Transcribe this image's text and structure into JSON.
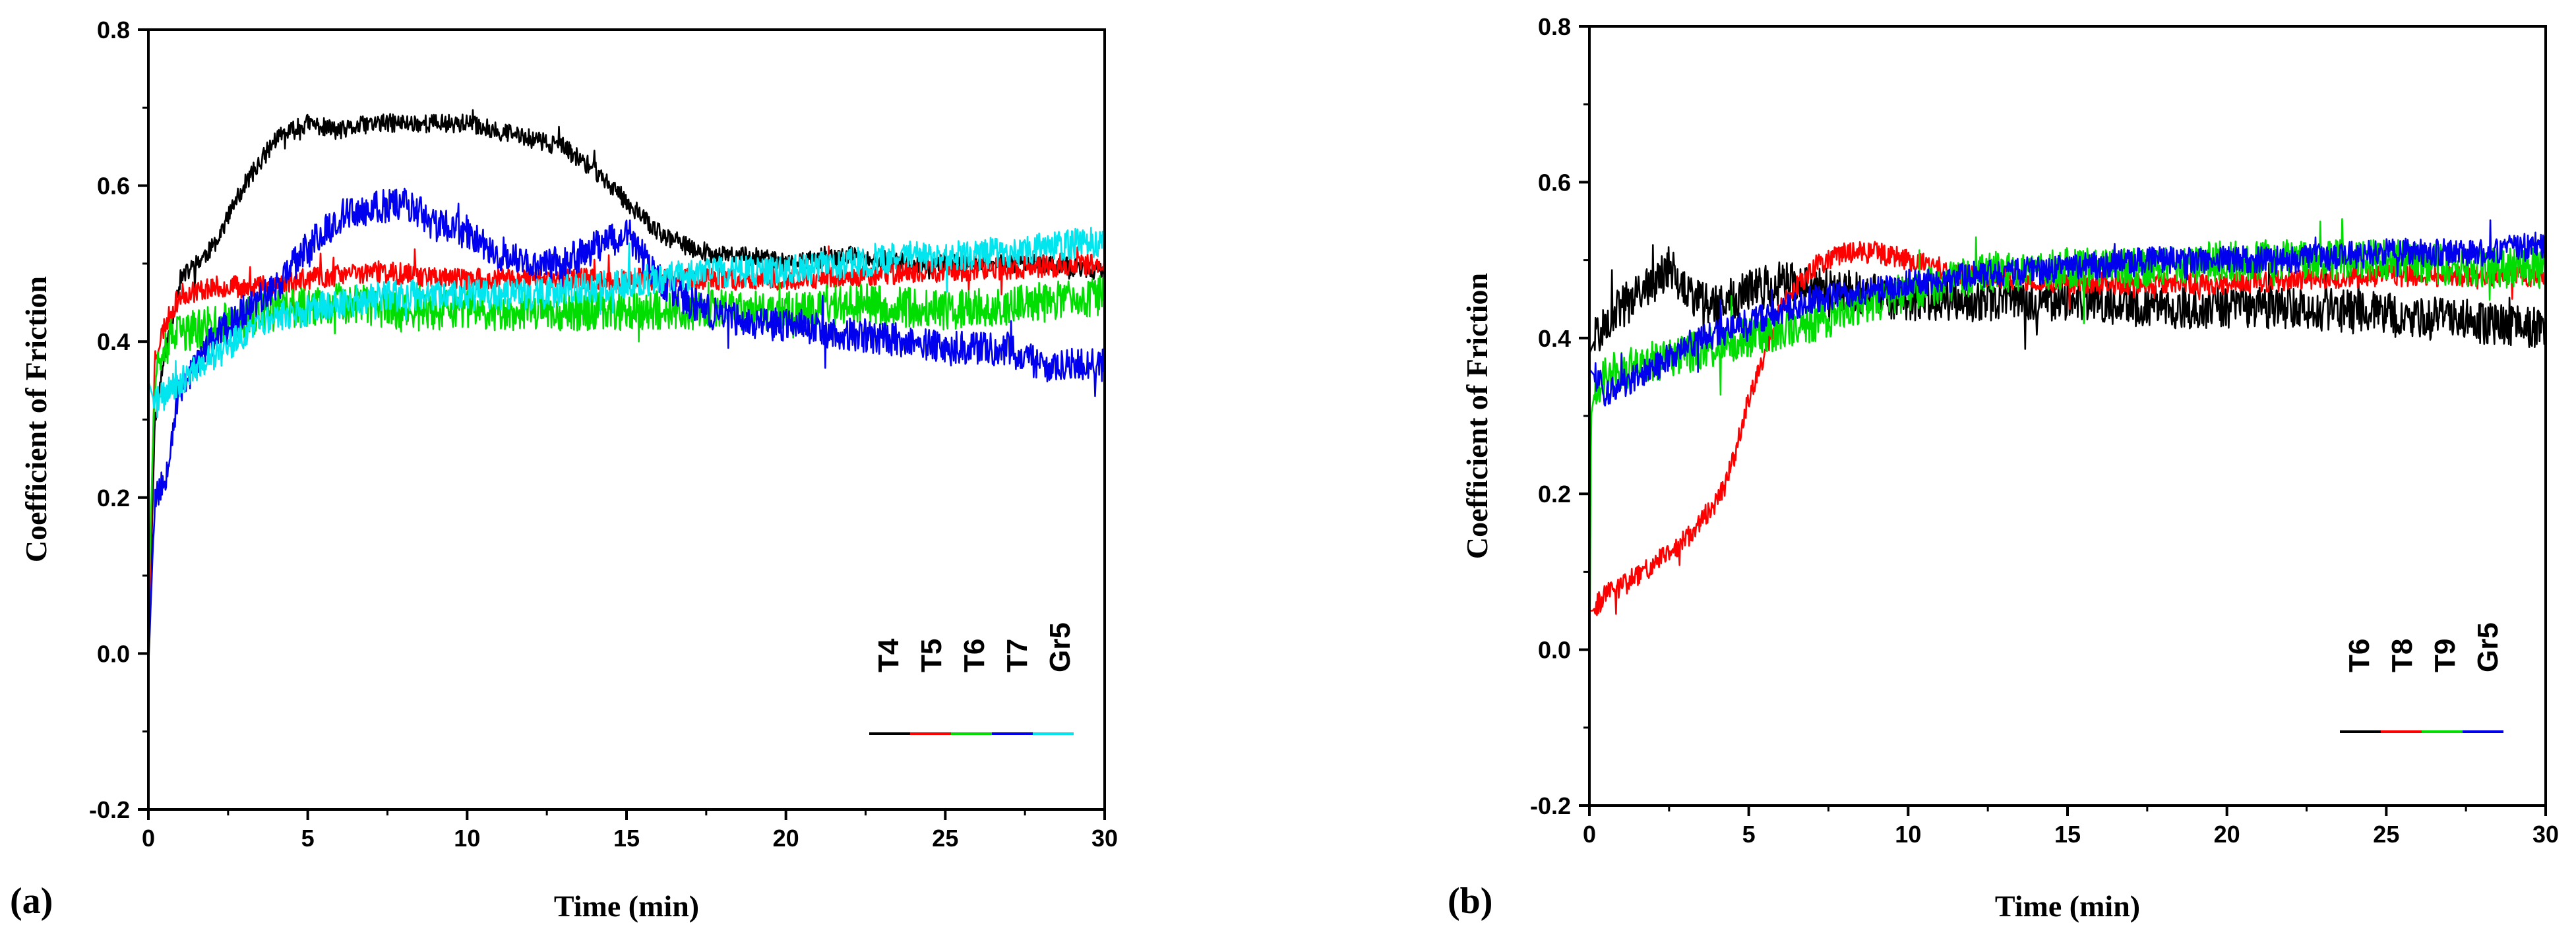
{
  "chart_data": [
    {
      "type": "line",
      "panel_label": "(a)",
      "xlabel": "Time (min)",
      "ylabel": "Coefficient of Friction",
      "xlim": [
        0,
        30
      ],
      "ylim": [
        -0.2,
        0.8
      ],
      "xticks": [
        0,
        5,
        10,
        15,
        20,
        25,
        30
      ],
      "xtick_labels": [
        "0",
        "5",
        "10",
        "15",
        "20",
        "25",
        "30"
      ],
      "yticks": [
        -0.2,
        0.0,
        0.2,
        0.4,
        0.6,
        0.8
      ],
      "ytick_labels": [
        "-0.2",
        "0.0",
        "0.2",
        "0.4",
        "0.6",
        "0.8"
      ],
      "grid": false,
      "legend_position": "bottom-right",
      "series": [
        {
          "name": "T4",
          "color": "#000000",
          "noise": 0.012,
          "seed": 11,
          "x": [
            0,
            0.2,
            0.5,
            1,
            1.5,
            2,
            3,
            4,
            5,
            6,
            7,
            8,
            9,
            10,
            11,
            12,
            13,
            14,
            15,
            16,
            17,
            18,
            19,
            20,
            22,
            24,
            26,
            28,
            30
          ],
          "y": [
            -0.02,
            0.3,
            0.38,
            0.48,
            0.5,
            0.52,
            0.6,
            0.66,
            0.68,
            0.67,
            0.68,
            0.68,
            0.68,
            0.68,
            0.67,
            0.66,
            0.65,
            0.62,
            0.58,
            0.54,
            0.52,
            0.51,
            0.51,
            0.5,
            0.51,
            0.5,
            0.5,
            0.5,
            0.49
          ]
        },
        {
          "name": "T5",
          "color": "#ff0000",
          "noise": 0.014,
          "seed": 23,
          "x": [
            0,
            0.2,
            0.5,
            1,
            2,
            3,
            5,
            7,
            10,
            15,
            20,
            25,
            30
          ],
          "y": [
            0.0,
            0.38,
            0.42,
            0.46,
            0.47,
            0.47,
            0.48,
            0.49,
            0.48,
            0.48,
            0.48,
            0.49,
            0.5
          ]
        },
        {
          "name": "T6",
          "color": "#00dd00",
          "noise": 0.026,
          "seed": 37,
          "x": [
            0,
            0.2,
            0.5,
            1,
            2,
            4,
            6,
            8,
            10,
            12,
            15,
            18,
            20,
            22,
            25,
            28,
            30
          ],
          "y": [
            0.05,
            0.36,
            0.4,
            0.41,
            0.42,
            0.44,
            0.45,
            0.44,
            0.44,
            0.44,
            0.44,
            0.44,
            0.44,
            0.45,
            0.44,
            0.45,
            0.46
          ]
        },
        {
          "name": "T7",
          "color": "#0000ee",
          "noise": 0.022,
          "seed": 53,
          "x": [
            0,
            0.2,
            0.5,
            0.8,
            1,
            2,
            3,
            4,
            5,
            6,
            7,
            8,
            9,
            10,
            11,
            12,
            13,
            14,
            15,
            16,
            17,
            18,
            20,
            22,
            24,
            26,
            27,
            28,
            30
          ],
          "y": [
            -0.02,
            0.2,
            0.22,
            0.3,
            0.34,
            0.4,
            0.44,
            0.47,
            0.52,
            0.56,
            0.57,
            0.58,
            0.55,
            0.54,
            0.51,
            0.5,
            0.5,
            0.52,
            0.54,
            0.48,
            0.45,
            0.43,
            0.42,
            0.41,
            0.4,
            0.39,
            0.39,
            0.37,
            0.37
          ]
        },
        {
          "name": "Gr5",
          "color": "#00e5ee",
          "noise": 0.02,
          "seed": 71,
          "x": [
            0,
            0.2,
            0.5,
            1,
            2,
            3,
            4,
            5,
            6,
            8,
            10,
            12,
            14,
            16,
            18,
            20,
            22,
            24,
            26,
            28,
            30
          ],
          "y": [
            0.35,
            0.32,
            0.33,
            0.35,
            0.38,
            0.41,
            0.43,
            0.44,
            0.45,
            0.46,
            0.46,
            0.46,
            0.47,
            0.48,
            0.49,
            0.49,
            0.5,
            0.51,
            0.51,
            0.52,
            0.53
          ]
        }
      ]
    },
    {
      "type": "line",
      "panel_label": "(b)",
      "xlabel": "Time (min)",
      "ylabel": "Coefficient of Friction",
      "xlim": [
        0,
        30
      ],
      "ylim": [
        -0.2,
        0.8
      ],
      "xticks": [
        0,
        5,
        10,
        15,
        20,
        25,
        30
      ],
      "xtick_labels": [
        "0",
        "5",
        "10",
        "15",
        "20",
        "25",
        "30"
      ],
      "yticks": [
        -0.2,
        0.0,
        0.2,
        0.4,
        0.6,
        0.8
      ],
      "ytick_labels": [
        "-0.2",
        "0.0",
        "0.2",
        "0.4",
        "0.6",
        "0.8"
      ],
      "grid": false,
      "legend_position": "bottom-right",
      "series": [
        {
          "name": "T6",
          "color": "#000000",
          "noise": 0.028,
          "seed": 101,
          "x": [
            0,
            0.2,
            0.5,
            1,
            2,
            2.5,
            3,
            4,
            5,
            6,
            8,
            10,
            12,
            15,
            18,
            20,
            22,
            25,
            28,
            30
          ],
          "y": [
            0.38,
            0.4,
            0.42,
            0.44,
            0.47,
            0.49,
            0.46,
            0.44,
            0.46,
            0.47,
            0.46,
            0.45,
            0.45,
            0.45,
            0.44,
            0.44,
            0.44,
            0.43,
            0.42,
            0.41
          ]
        },
        {
          "name": "T8",
          "color": "#ff0000",
          "noise": 0.014,
          "seed": 113,
          "x": [
            0,
            0.1,
            0.5,
            1,
            2,
            3,
            4,
            4.5,
            5,
            5.5,
            6,
            7,
            8,
            9,
            10,
            12,
            15,
            20,
            25,
            30
          ],
          "y": [
            0.05,
            0.05,
            0.07,
            0.08,
            0.11,
            0.14,
            0.19,
            0.24,
            0.32,
            0.38,
            0.44,
            0.49,
            0.51,
            0.51,
            0.5,
            0.48,
            0.47,
            0.47,
            0.48,
            0.48
          ]
        },
        {
          "name": "T9",
          "color": "#00dd00",
          "noise": 0.026,
          "seed": 127,
          "x": [
            0,
            0.05,
            0.2,
            0.5,
            1,
            2,
            3,
            5,
            7,
            10,
            12,
            15,
            18,
            20,
            22,
            25,
            28,
            30
          ],
          "y": [
            -0.07,
            0.3,
            0.34,
            0.35,
            0.36,
            0.37,
            0.38,
            0.4,
            0.42,
            0.46,
            0.48,
            0.49,
            0.49,
            0.5,
            0.5,
            0.5,
            0.49,
            0.49
          ]
        },
        {
          "name": "Gr5",
          "color": "#0000ee",
          "noise": 0.018,
          "seed": 139,
          "x": [
            0,
            0.2,
            0.5,
            1,
            2,
            3,
            5,
            7,
            10,
            12,
            15,
            18,
            20,
            22,
            25,
            28,
            30
          ],
          "y": [
            0.36,
            0.35,
            0.33,
            0.34,
            0.36,
            0.39,
            0.42,
            0.45,
            0.47,
            0.48,
            0.49,
            0.5,
            0.5,
            0.5,
            0.51,
            0.51,
            0.52
          ]
        }
      ]
    }
  ]
}
